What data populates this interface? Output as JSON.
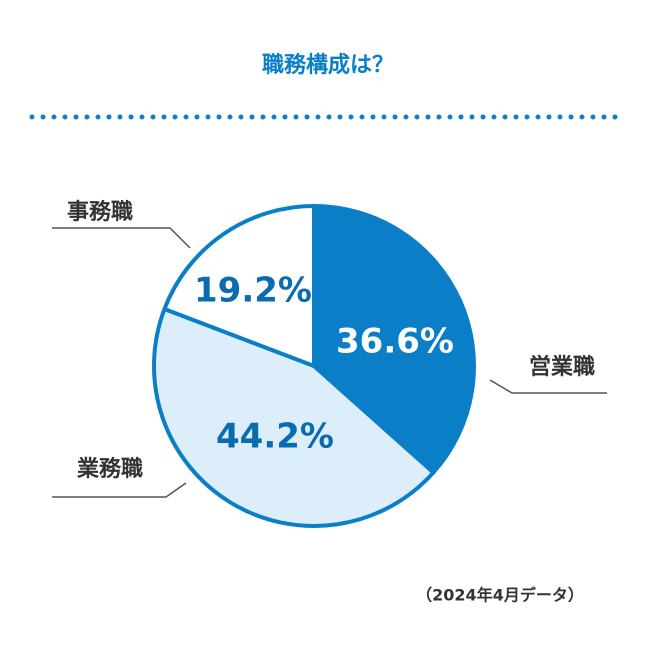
{
  "chart_data": {
    "type": "pie",
    "title": "職務構成は？",
    "categories": [
      "営業職",
      "業務職",
      "事務職"
    ],
    "values": [
      36.6,
      44.2,
      19.2
    ],
    "value_labels": [
      "36.6%",
      "44.2%",
      "19.2%"
    ],
    "colors": [
      "#0a7fc8",
      "#ddeefb",
      "#ffffff"
    ],
    "note": "（2024年4月データ）"
  }
}
